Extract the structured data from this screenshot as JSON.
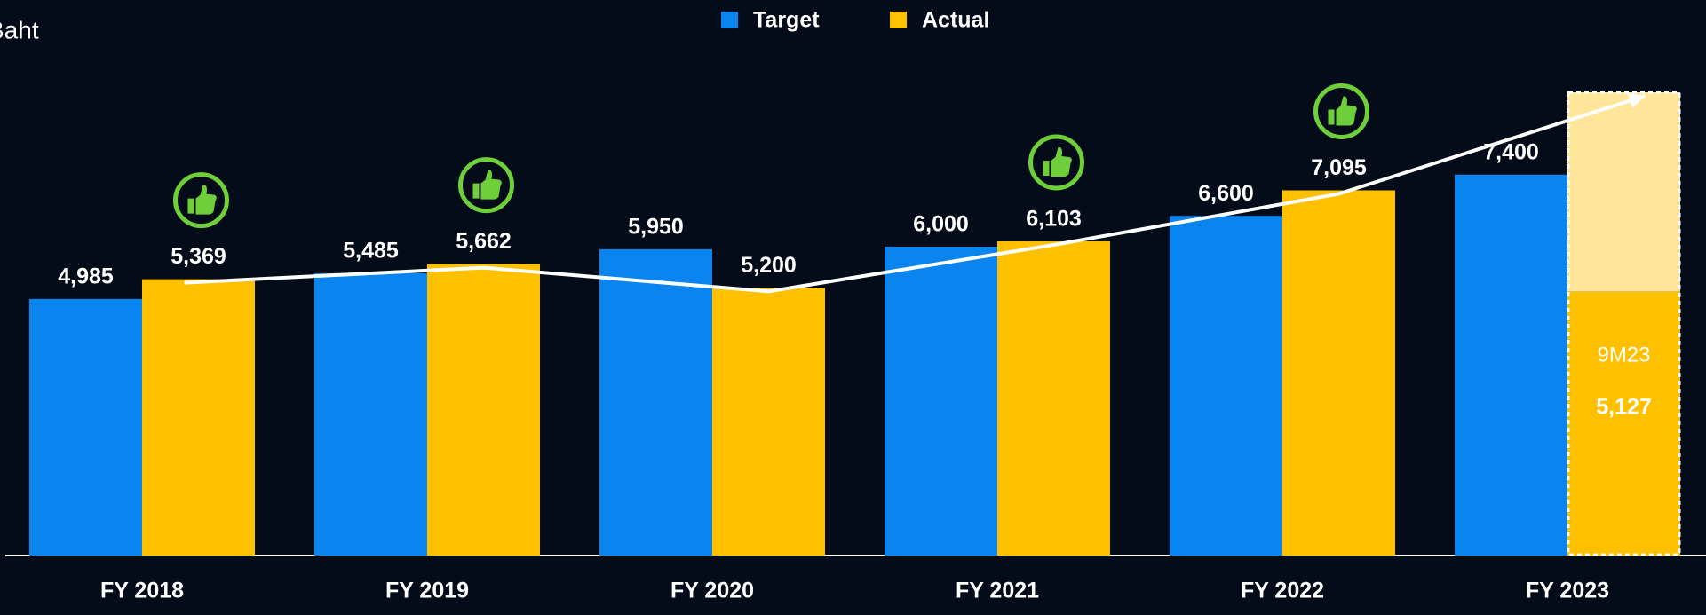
{
  "chart_data": {
    "type": "bar",
    "ylabel": "Baht",
    "categories": [
      "FY 2018",
      "FY 2019",
      "FY 2020",
      "FY 2021",
      "FY 2022",
      "FY 2023"
    ],
    "series": [
      {
        "name": "Target",
        "color": "#0a84ee",
        "values": [
          4985,
          5485,
          5950,
          6000,
          6600,
          7400
        ],
        "value_labels": [
          "4,985",
          "5,485",
          "5,950",
          "6,000",
          "6,600",
          "7,400"
        ]
      },
      {
        "name": "Actual",
        "color": "#ffc000",
        "values": [
          5369,
          5662,
          5200,
          6103,
          7095,
          5127
        ],
        "value_labels": [
          "5,369",
          "5,662",
          "5,200",
          "6,103",
          "7,095",
          "5,127"
        ]
      }
    ],
    "annotation": "9M23",
    "ylim": [
      0,
      9000
    ],
    "legend": "top"
  }
}
